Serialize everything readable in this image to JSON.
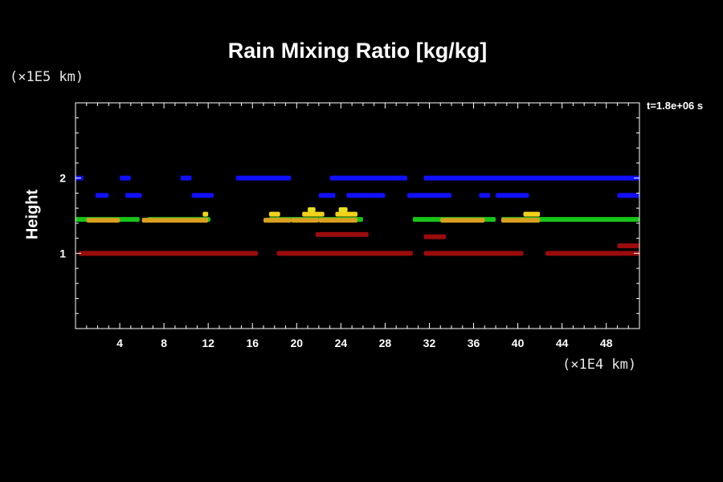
{
  "chart_data": {
    "type": "heatmap",
    "title": "Rain Mixing Ratio [kg/kg]",
    "ylabel": "Height",
    "xunit": "(×1E4 km)",
    "yunit": "(×1E5 km)",
    "annotation": "t=1.8e+06 s",
    "xlim": [
      0,
      51
    ],
    "ylim": [
      0,
      3
    ],
    "x_ticks": [
      4,
      8,
      12,
      16,
      20,
      24,
      28,
      32,
      36,
      40,
      44,
      48
    ],
    "y_ticks": [
      1,
      2
    ],
    "background": "#000000",
    "layers": [
      {
        "color": "#1010ff",
        "y": 2.0,
        "segments": [
          [
            0,
            0.7
          ],
          [
            4,
            5
          ],
          [
            9.5,
            10.5
          ],
          [
            14.5,
            19.5
          ],
          [
            23,
            30
          ],
          [
            31.5,
            51
          ]
        ]
      },
      {
        "color": "#1010ff",
        "y": 1.77,
        "segments": [
          [
            1.8,
            3
          ],
          [
            4.5,
            6
          ],
          [
            10.5,
            12.5
          ],
          [
            22,
            23.5
          ],
          [
            24.5,
            28
          ],
          [
            30,
            34
          ],
          [
            36.5,
            37.5
          ],
          [
            38,
            41
          ],
          [
            49,
            51
          ]
        ]
      },
      {
        "color": "#19c419",
        "y": 1.45,
        "segments": [
          [
            0,
            5.8
          ],
          [
            6.5,
            12.2
          ],
          [
            17.5,
            26
          ],
          [
            30.5,
            38
          ],
          [
            38.5,
            51
          ]
        ]
      },
      {
        "color": "#d9a020",
        "y": 1.44,
        "segments": [
          [
            1,
            4
          ],
          [
            6,
            12
          ],
          [
            17,
            19.5
          ],
          [
            19.5,
            22
          ],
          [
            22,
            25.5
          ],
          [
            33,
            37
          ],
          [
            38.5,
            42
          ]
        ]
      },
      {
        "color": "#f2d21a",
        "y": 1.52,
        "segments": [
          [
            11.5,
            12
          ],
          [
            17.5,
            18.5
          ],
          [
            20.5,
            22.5
          ],
          [
            23.5,
            25.5
          ],
          [
            40.5,
            42
          ]
        ]
      },
      {
        "color": "#e8e020",
        "y": 1.58,
        "segments": [
          [
            21,
            21.7
          ],
          [
            23.8,
            24.6
          ]
        ]
      },
      {
        "color": "#9a0c0c",
        "y": 1.0,
        "segments": [
          [
            0.3,
            16.5
          ],
          [
            18.2,
            30.5
          ],
          [
            31.5,
            40.5
          ],
          [
            42.5,
            51
          ]
        ]
      },
      {
        "color": "#9a0c0c",
        "y": 1.25,
        "segments": [
          [
            21.7,
            26.5
          ]
        ]
      },
      {
        "color": "#9a0c0c",
        "y": 1.22,
        "segments": [
          [
            31.5,
            33.5
          ]
        ]
      },
      {
        "color": "#9a0c0c",
        "y": 1.1,
        "segments": [
          [
            49,
            51
          ]
        ]
      }
    ]
  }
}
